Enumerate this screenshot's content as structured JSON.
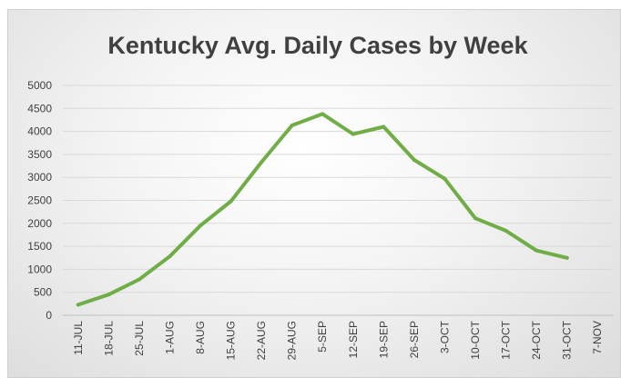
{
  "chart_data": {
    "type": "line",
    "title": "Kentucky Avg. Daily Cases by Week",
    "xlabel": "",
    "ylabel": "",
    "ylim": [
      0,
      5000
    ],
    "yticks": [
      0,
      500,
      1000,
      1500,
      2000,
      2500,
      3000,
      3500,
      4000,
      4500,
      5000
    ],
    "categories": [
      "11-JUL",
      "18-JUL",
      "25-JUL",
      "1-AUG",
      "8-AUG",
      "15-AUG",
      "22-AUG",
      "29-AUG",
      "5-SEP",
      "12-SEP",
      "19-SEP",
      "26-SEP",
      "3-OCT",
      "10-OCT",
      "17-OCT",
      "24-OCT",
      "31-OCT",
      "7-NOV"
    ],
    "series": [
      {
        "color": "#70ad47",
        "values": [
          230,
          450,
          780,
          1280,
          1950,
          2480,
          3330,
          4130,
          4380,
          3940,
          4100,
          3380,
          2970,
          2110,
          1840,
          1410,
          1250,
          null
        ]
      }
    ],
    "grid": true,
    "legend": "none"
  }
}
